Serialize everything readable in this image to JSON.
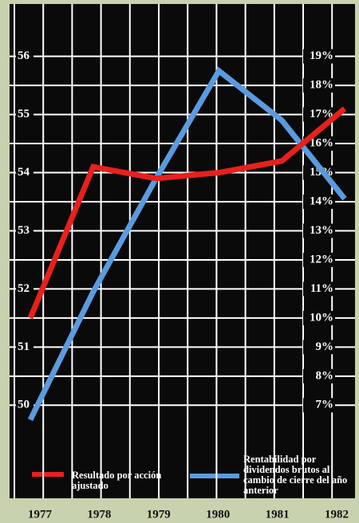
{
  "chart_data": {
    "type": "line",
    "categories": [
      "1977",
      "1978",
      "1979",
      "1980",
      "1981",
      "1982"
    ],
    "series": [
      {
        "name": "Resultado por acción ajustado",
        "color": "#e8201c",
        "values": [
          51.5,
          54.1,
          53.9,
          54.0,
          54.2,
          55.1
        ]
      },
      {
        "name": "Rentabilidad por dividendos brutos al cambio de cierre del año anterior",
        "color": "#5a9be0",
        "axis": "y2",
        "values": [
          6.5,
          10.9,
          14.8,
          18.5,
          16.8,
          14.1
        ]
      }
    ],
    "ylim": [
      48.4,
      56.9
    ],
    "yticks": [
      50,
      51,
      52,
      53,
      54,
      55,
      56
    ],
    "y2lim": [
      3.8,
      20.8
    ],
    "y2ticks": [
      {
        "value": 7,
        "label": "7%"
      },
      {
        "value": 8,
        "label": "8%"
      },
      {
        "value": 9,
        "label": "9%"
      },
      {
        "value": 10,
        "label": "10%"
      },
      {
        "value": 11,
        "label": "11%"
      },
      {
        "value": 12,
        "label": "12%"
      },
      {
        "value": 13,
        "label": "13%"
      },
      {
        "value": 14,
        "label": "14%"
      },
      {
        "value": 15,
        "label": "15%"
      },
      {
        "value": 16,
        "label": "16%"
      },
      {
        "value": 17,
        "label": "17%"
      },
      {
        "value": 18,
        "label": "18%"
      },
      {
        "value": 19,
        "label": "19%"
      }
    ],
    "grid": true
  }
}
